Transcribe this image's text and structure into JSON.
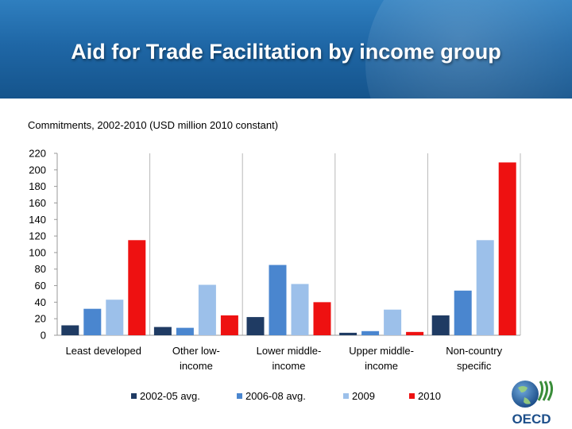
{
  "header": {
    "title": "Aid for Trade Facilitation by income group"
  },
  "subtitle": "Commitments, 2002-2010 (USD million 2010 constant)",
  "logo": {
    "text": "OECD",
    "icon": "oecd-globe-logo"
  },
  "colors": {
    "banner": "#1f67a6",
    "series": [
      "#1f3b63",
      "#4a86cf",
      "#9cc0ea",
      "#ee1111"
    ]
  },
  "chart_data": {
    "type": "bar",
    "categories": [
      [
        "Least developed"
      ],
      [
        "Other low-",
        "income"
      ],
      [
        "Lower middle-",
        "income"
      ],
      [
        "Upper middle-",
        "income"
      ],
      [
        "Non-country",
        "specific"
      ]
    ],
    "series": [
      {
        "name": "2002-05 avg.",
        "values": [
          12,
          10,
          22,
          3,
          24
        ]
      },
      {
        "name": "2006-08 avg.",
        "values": [
          32,
          9,
          85,
          5,
          54
        ]
      },
      {
        "name": "2009",
        "values": [
          43,
          61,
          62,
          31,
          115
        ]
      },
      {
        "name": "2010",
        "values": [
          115,
          24,
          40,
          4,
          209
        ]
      }
    ],
    "y_ticks": [
      0,
      20,
      40,
      60,
      80,
      100,
      120,
      140,
      160,
      180,
      200,
      220
    ],
    "ylim": [
      0,
      220
    ],
    "grid": false,
    "legend_position": "bottom"
  }
}
